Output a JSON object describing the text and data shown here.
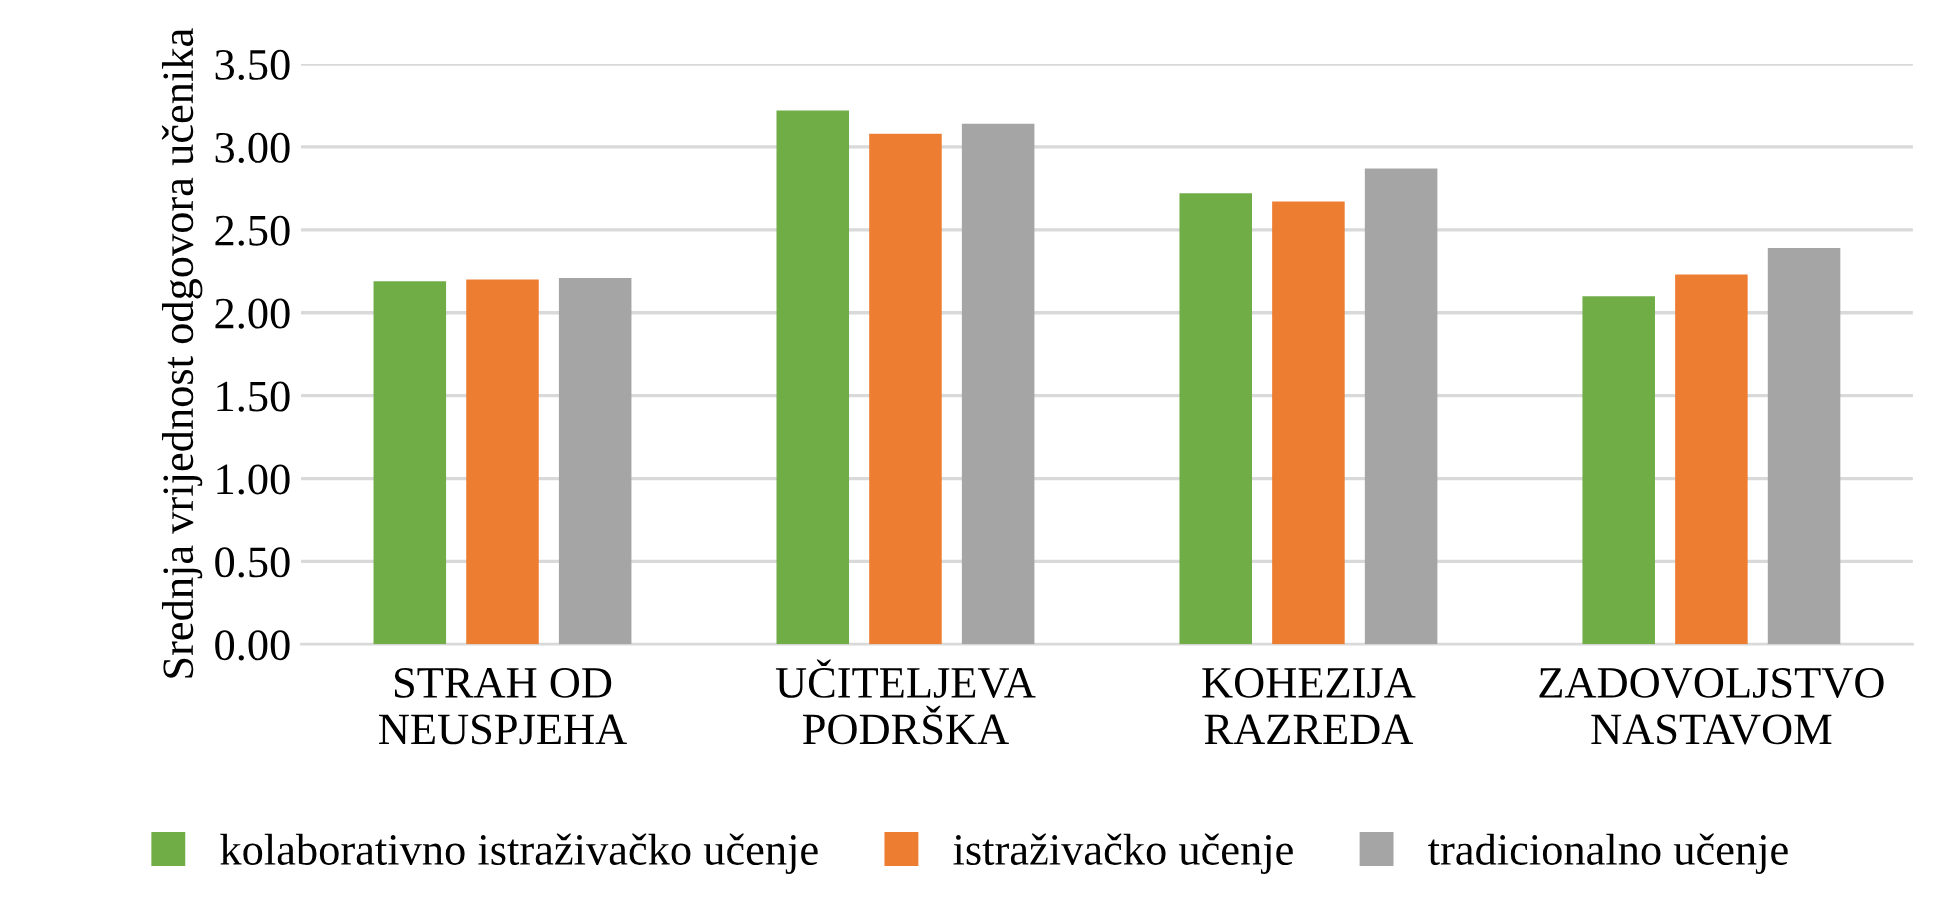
{
  "chart_data": {
    "type": "bar",
    "ylabel": "Srednja vrijednost odgovora učenika",
    "categories": [
      "STRAH OD\nNEUSPJEHA",
      "UČITELJEVA\nPODRŠKA",
      "KOHEZIJA\nRAZREDA",
      "ZADOVOLJSTVO\nNASTAVOM"
    ],
    "series": [
      {
        "name": "kolaborativno istraživačko učenje",
        "color": "#70ad47",
        "values": [
          2.19,
          3.22,
          2.72,
          2.1
        ]
      },
      {
        "name": "istraživačko učenje",
        "color": "#ed7d31",
        "values": [
          2.2,
          3.08,
          2.67,
          2.23
        ]
      },
      {
        "name": "tradicionalno učenje",
        "color": "#a5a5a5",
        "values": [
          2.21,
          3.14,
          2.87,
          2.39
        ]
      }
    ],
    "ylim": [
      0,
      3.5
    ],
    "yticks": [
      {
        "value": 0,
        "label": "0.00"
      },
      {
        "value": 0.5,
        "label": "0.50"
      },
      {
        "value": 1,
        "label": "1.00"
      },
      {
        "value": 1.5,
        "label": "1.50"
      },
      {
        "value": 2,
        "label": "2.00"
      },
      {
        "value": 2.5,
        "label": "2.50"
      },
      {
        "value": 3,
        "label": "3.00"
      },
      {
        "value": 3.5,
        "label": "3.50"
      }
    ],
    "grid": "y",
    "legend": "bottom"
  }
}
